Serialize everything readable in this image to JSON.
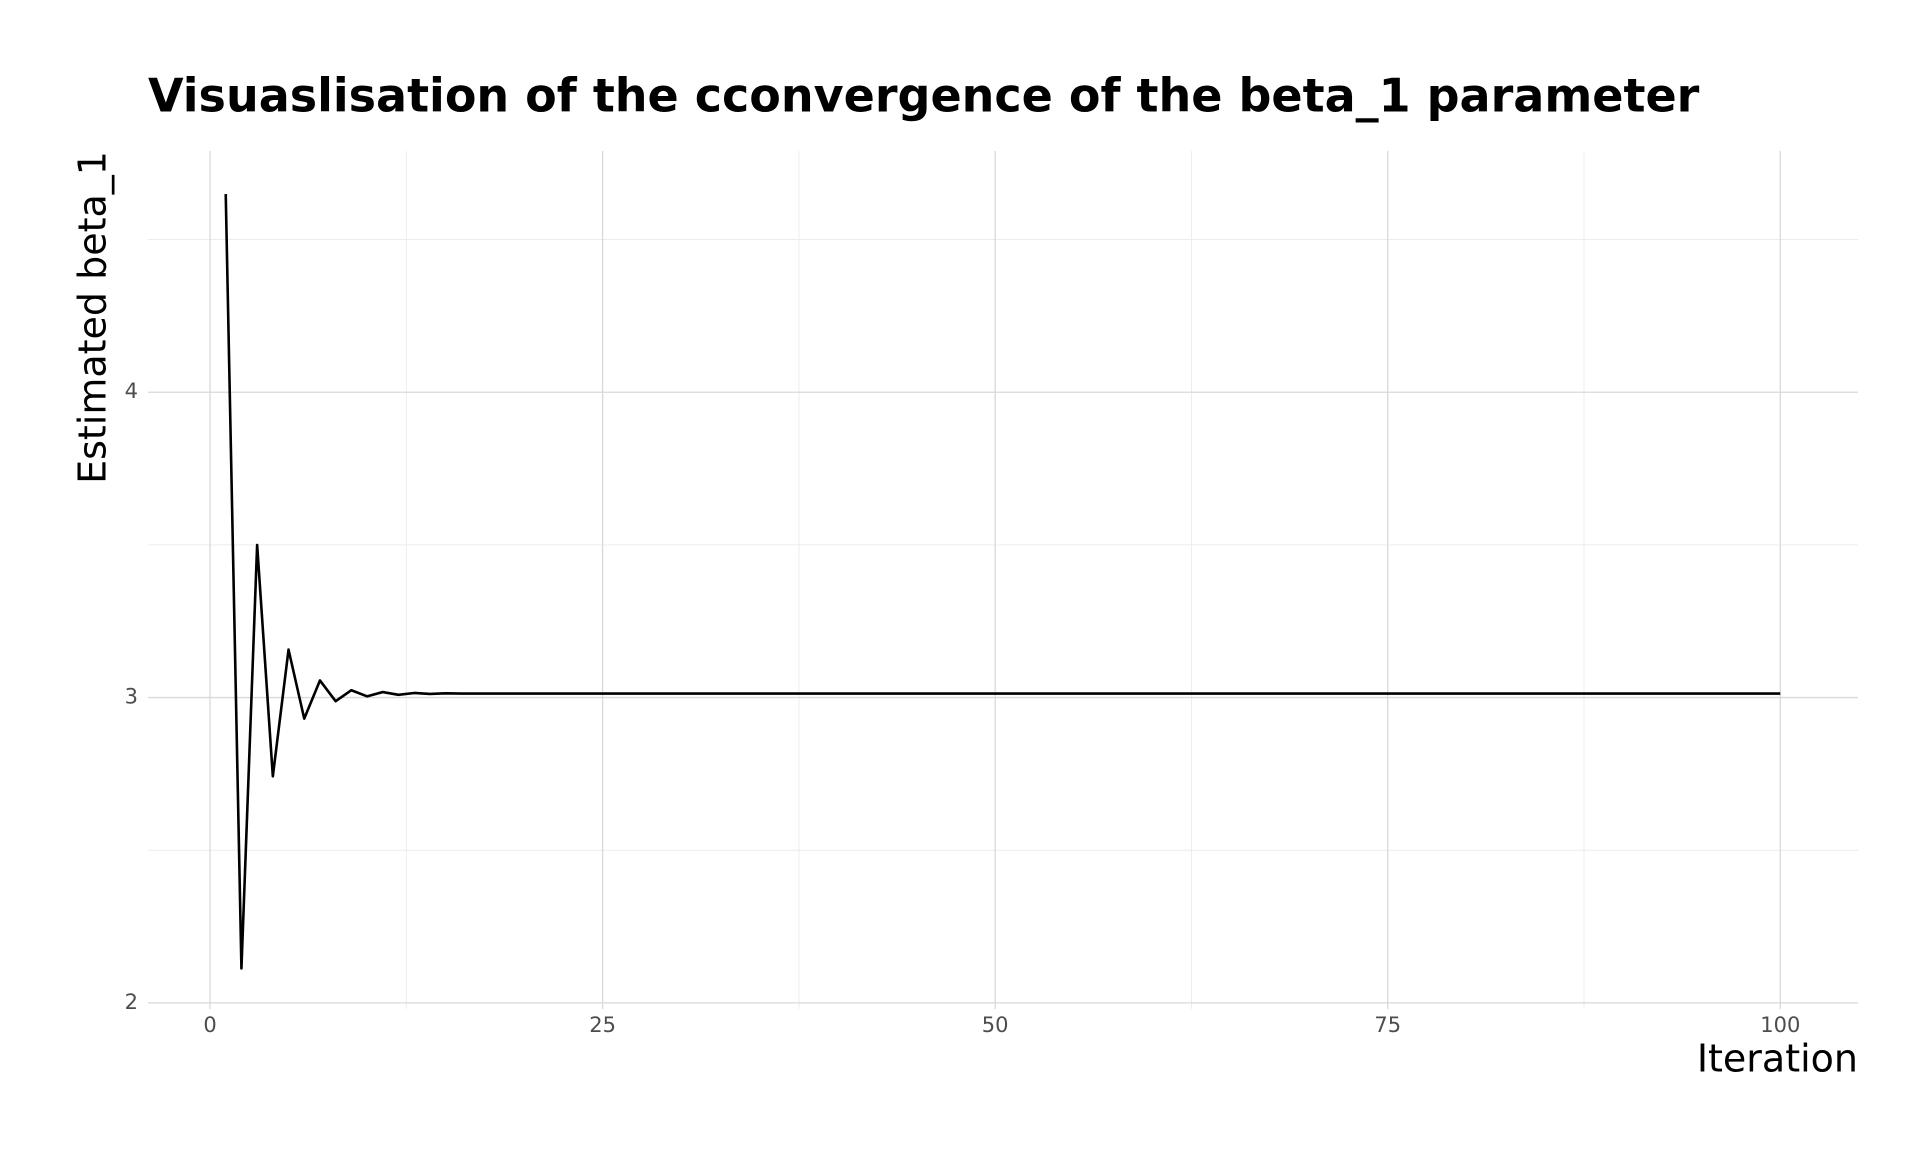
{
  "chart_data": {
    "type": "line",
    "title": "Visuaslisation of the cconvergence of the beta_1 parameter",
    "x_label": "Iteration",
    "y_label": "Estimated beta_1",
    "color": "#000000",
    "x": [
      1,
      2,
      3,
      4,
      5,
      6,
      7,
      8,
      9,
      10,
      11,
      12,
      13,
      14,
      15,
      16,
      17,
      18,
      19,
      20,
      21,
      22,
      23,
      24,
      25,
      26,
      27,
      28,
      29,
      30,
      31,
      32,
      33,
      34,
      35,
      36,
      37,
      38,
      39,
      40,
      41,
      42,
      43,
      44,
      45,
      46,
      47,
      48,
      49,
      50,
      51,
      52,
      53,
      54,
      55,
      56,
      57,
      58,
      59,
      60,
      61,
      62,
      63,
      64,
      65,
      66,
      67,
      68,
      69,
      70,
      71,
      72,
      73,
      74,
      75,
      76,
      77,
      78,
      79,
      80,
      81,
      82,
      83,
      84,
      85,
      86,
      87,
      88,
      89,
      90,
      91,
      92,
      93,
      94,
      95,
      96,
      97,
      98,
      99,
      100
    ],
    "values": [
      4.649,
      2.113,
      3.5,
      2.742,
      3.157,
      2.931,
      3.056,
      2.988,
      3.024,
      3.004,
      3.018,
      3.009,
      3.015,
      3.012,
      3.014,
      3.013,
      3.013,
      3.013,
      3.013,
      3.013,
      3.013,
      3.013,
      3.013,
      3.013,
      3.013,
      3.013,
      3.013,
      3.013,
      3.013,
      3.013,
      3.013,
      3.013,
      3.013,
      3.013,
      3.013,
      3.013,
      3.013,
      3.013,
      3.013,
      3.013,
      3.013,
      3.013,
      3.013,
      3.013,
      3.013,
      3.013,
      3.013,
      3.013,
      3.013,
      3.013,
      3.013,
      3.013,
      3.013,
      3.013,
      3.013,
      3.013,
      3.013,
      3.013,
      3.013,
      3.013,
      3.013,
      3.013,
      3.013,
      3.013,
      3.013,
      3.013,
      3.013,
      3.013,
      3.013,
      3.013,
      3.013,
      3.013,
      3.013,
      3.013,
      3.013,
      3.013,
      3.013,
      3.013,
      3.013,
      3.013,
      3.013,
      3.013,
      3.013,
      3.013,
      3.013,
      3.013,
      3.013,
      3.013,
      3.013,
      3.013,
      3.013,
      3.013,
      3.013,
      3.013,
      3.013,
      3.013,
      3.013,
      3.013,
      3.013,
      3.013
    ],
    "xlim": [
      -3.95,
      104.95
    ],
    "ylim": [
      1.98,
      4.79
    ],
    "xticks": [
      0,
      25,
      50,
      75,
      100
    ],
    "yticks": [
      2,
      3,
      4
    ],
    "x_minor_grid": [
      12.5,
      37.5,
      62.5,
      87.5
    ],
    "y_minor_grid": [
      2.5,
      3.5,
      4.5
    ],
    "grid": true
  }
}
